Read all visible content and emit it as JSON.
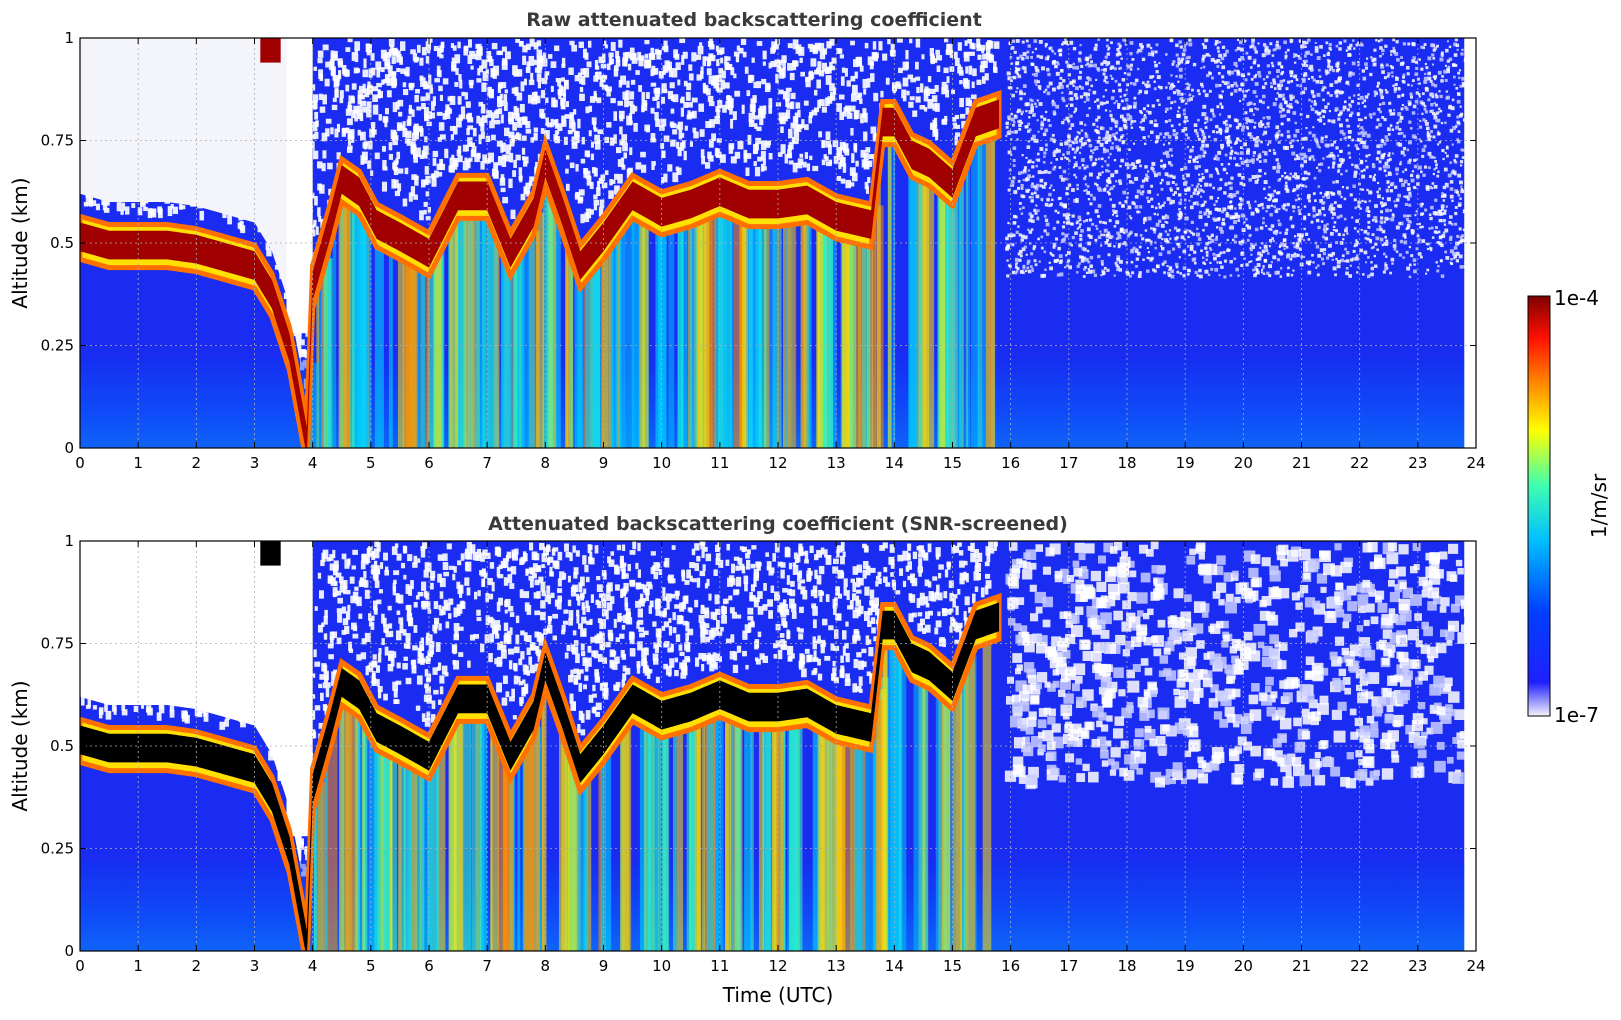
{
  "chart_data": [
    {
      "type": "heatmap",
      "title": "Raw attenuated backscattering coefficient",
      "xlabel": "",
      "ylabel": "Altitude (km)",
      "xlim": [
        0,
        24
      ],
      "ylim": [
        0,
        1
      ],
      "x_ticks": [
        "0",
        "1",
        "2",
        "3",
        "4",
        "5",
        "6",
        "7",
        "8",
        "9",
        "10",
        "11",
        "12",
        "13",
        "14",
        "15",
        "16",
        "17",
        "18",
        "19",
        "20",
        "21",
        "22",
        "23",
        "24"
      ],
      "y_ticks": [
        "0",
        "0.25",
        "0.5",
        "0.75",
        "1"
      ],
      "grid": true,
      "screened": false,
      "colorscale": "jet (log)",
      "data_end_time": 23.8,
      "layer_altitude_km": [
        [
          0.0,
          0.52
        ],
        [
          0.5,
          0.5
        ],
        [
          1.0,
          0.5
        ],
        [
          1.5,
          0.5
        ],
        [
          2.0,
          0.49
        ],
        [
          2.5,
          0.47
        ],
        [
          3.0,
          0.45
        ],
        [
          3.3,
          0.38
        ],
        [
          3.6,
          0.25
        ],
        [
          3.9,
          0.02
        ],
        [
          4.0,
          0.4
        ],
        [
          4.3,
          0.55
        ],
        [
          4.5,
          0.66
        ],
        [
          4.8,
          0.63
        ],
        [
          5.1,
          0.55
        ],
        [
          5.5,
          0.52
        ],
        [
          6.0,
          0.48
        ],
        [
          6.5,
          0.62
        ],
        [
          7.0,
          0.62
        ],
        [
          7.4,
          0.48
        ],
        [
          7.8,
          0.58
        ],
        [
          8.0,
          0.7
        ],
        [
          8.3,
          0.58
        ],
        [
          8.6,
          0.45
        ],
        [
          9.0,
          0.52
        ],
        [
          9.5,
          0.62
        ],
        [
          10.0,
          0.58
        ],
        [
          10.5,
          0.6
        ],
        [
          11.0,
          0.63
        ],
        [
          11.5,
          0.6
        ],
        [
          12.0,
          0.6
        ],
        [
          12.5,
          0.61
        ],
        [
          13.0,
          0.57
        ],
        [
          13.6,
          0.55
        ],
        [
          13.8,
          0.8
        ],
        [
          14.0,
          0.8
        ],
        [
          14.3,
          0.72
        ],
        [
          14.6,
          0.7
        ],
        [
          15.0,
          0.65
        ],
        [
          15.4,
          0.8
        ],
        [
          15.8,
          0.82
        ]
      ]
    },
    {
      "type": "heatmap",
      "title": "Attenuated backscattering coefficient (SNR-screened)",
      "xlabel": "Time (UTC)",
      "ylabel": "Altitude (km)",
      "xlim": [
        0,
        24
      ],
      "ylim": [
        0,
        1
      ],
      "x_ticks": [
        "0",
        "1",
        "2",
        "3",
        "4",
        "5",
        "6",
        "7",
        "8",
        "9",
        "10",
        "11",
        "12",
        "13",
        "14",
        "15",
        "16",
        "17",
        "18",
        "19",
        "20",
        "21",
        "22",
        "23",
        "24"
      ],
      "y_ticks": [
        "0",
        "0.25",
        "0.5",
        "0.75",
        "1"
      ],
      "grid": true,
      "screened": true,
      "colorscale": "jet (log)",
      "data_end_time": 23.8,
      "saturated_color": "#000000"
    }
  ],
  "colorbar": {
    "label": "1/m/sr",
    "max_label": "1e-4",
    "min_label": "1e-7",
    "scale": "log",
    "colors": [
      "#f4f4fb",
      "#0000ff",
      "#0080ff",
      "#00ffff",
      "#ffff00",
      "#ff8000",
      "#ff0000",
      "#800000"
    ]
  }
}
